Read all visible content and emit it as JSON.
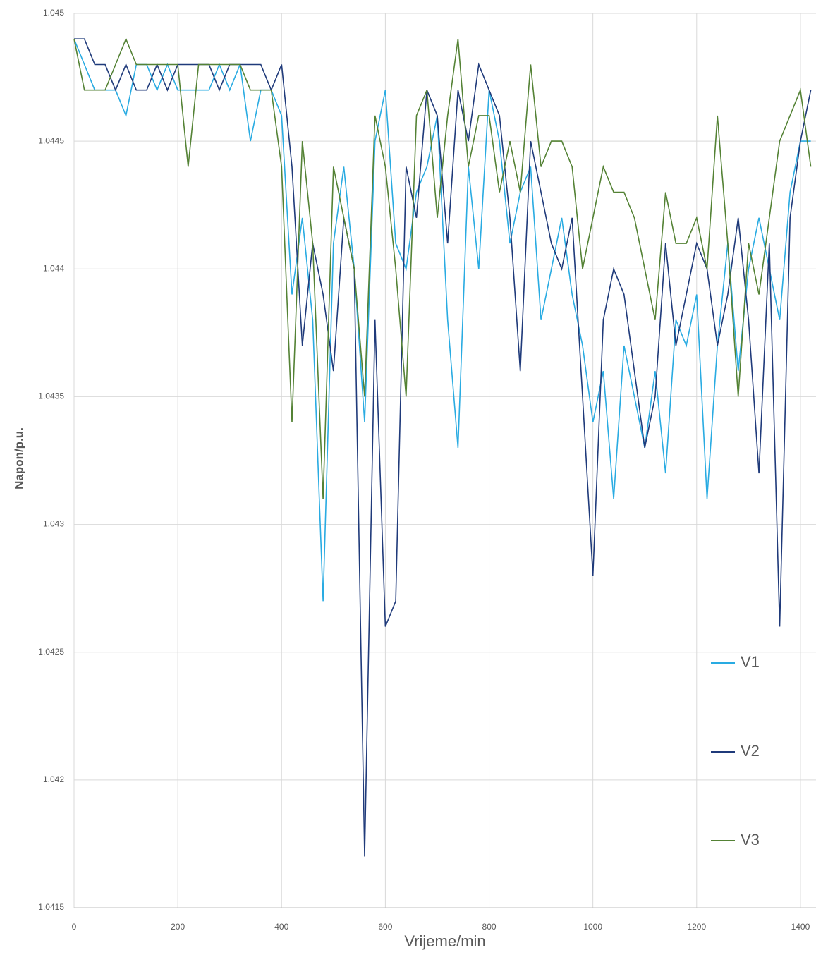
{
  "chart_data": {
    "type": "line",
    "x_label": "Vrijeme/min",
    "y_label": "Napon/p.u.",
    "x": [
      0,
      20,
      40,
      60,
      80,
      100,
      120,
      140,
      160,
      180,
      200,
      220,
      240,
      260,
      280,
      300,
      320,
      340,
      360,
      380,
      400,
      420,
      440,
      460,
      480,
      500,
      520,
      540,
      560,
      580,
      600,
      620,
      640,
      660,
      680,
      700,
      720,
      740,
      760,
      780,
      800,
      820,
      840,
      860,
      880,
      900,
      920,
      940,
      960,
      980,
      1000,
      1020,
      1040,
      1060,
      1080,
      1100,
      1120,
      1140,
      1160,
      1180,
      1200,
      1220,
      1240,
      1260,
      1280,
      1300,
      1320,
      1340,
      1360,
      1380,
      1400,
      1420
    ],
    "series": [
      {
        "name": "V1",
        "color": "#29abe2",
        "values": [
          1.0449,
          1.0448,
          1.0447,
          1.0447,
          1.0447,
          1.0446,
          1.0448,
          1.0448,
          1.0447,
          1.0448,
          1.0447,
          1.0447,
          1.0447,
          1.0447,
          1.0448,
          1.0447,
          1.0448,
          1.0445,
          1.0447,
          1.0447,
          1.0446,
          1.0439,
          1.0442,
          1.0438,
          1.0427,
          1.0441,
          1.0444,
          1.044,
          1.0434,
          1.0445,
          1.0447,
          1.0441,
          1.044,
          1.0443,
          1.0444,
          1.0446,
          1.0438,
          1.0433,
          1.0444,
          1.044,
          1.0447,
          1.0445,
          1.0441,
          1.0443,
          1.0444,
          1.0438,
          1.044,
          1.0442,
          1.0439,
          1.0437,
          1.0434,
          1.0436,
          1.0431,
          1.0437,
          1.0435,
          1.0433,
          1.0436,
          1.0432,
          1.0438,
          1.0437,
          1.0439,
          1.0431,
          1.0437,
          1.0441,
          1.0436,
          1.044,
          1.0442,
          1.044,
          1.0438,
          1.0443,
          1.0445,
          1.0445
        ]
      },
      {
        "name": "V2",
        "color": "#1f3a7a",
        "values": [
          1.0449,
          1.0449,
          1.0448,
          1.0448,
          1.0447,
          1.0448,
          1.0447,
          1.0447,
          1.0448,
          1.0447,
          1.0448,
          1.0448,
          1.0448,
          1.0448,
          1.0447,
          1.0448,
          1.0448,
          1.0448,
          1.0448,
          1.0447,
          1.0448,
          1.0444,
          1.0437,
          1.0441,
          1.0439,
          1.0436,
          1.0442,
          1.044,
          1.0417,
          1.0438,
          1.0426,
          1.0427,
          1.0444,
          1.0442,
          1.0447,
          1.0446,
          1.0441,
          1.0447,
          1.0445,
          1.0448,
          1.0447,
          1.0446,
          1.0442,
          1.0436,
          1.0445,
          1.0443,
          1.0441,
          1.044,
          1.0442,
          1.0435,
          1.0428,
          1.0438,
          1.044,
          1.0439,
          1.0436,
          1.0433,
          1.0435,
          1.0441,
          1.0437,
          1.0439,
          1.0441,
          1.044,
          1.0437,
          1.0439,
          1.0442,
          1.0438,
          1.0432,
          1.0441,
          1.0426,
          1.0442,
          1.0445,
          1.0447
        ]
      },
      {
        "name": "V3",
        "color": "#548235",
        "values": [
          1.0449,
          1.0447,
          1.0447,
          1.0447,
          1.0448,
          1.0449,
          1.0448,
          1.0448,
          1.0448,
          1.0448,
          1.0448,
          1.0444,
          1.0448,
          1.0448,
          1.0448,
          1.0448,
          1.0448,
          1.0447,
          1.0447,
          1.0447,
          1.0444,
          1.0434,
          1.0445,
          1.0441,
          1.0431,
          1.0444,
          1.0442,
          1.044,
          1.0435,
          1.0446,
          1.0444,
          1.044,
          1.0435,
          1.0446,
          1.0447,
          1.0442,
          1.0446,
          1.0449,
          1.0444,
          1.0446,
          1.0446,
          1.0443,
          1.0445,
          1.0443,
          1.0448,
          1.0444,
          1.0445,
          1.0445,
          1.0444,
          1.044,
          1.0442,
          1.0444,
          1.0443,
          1.0443,
          1.0442,
          1.044,
          1.0438,
          1.0443,
          1.0441,
          1.0441,
          1.0442,
          1.044,
          1.0446,
          1.0441,
          1.0435,
          1.0441,
          1.0439,
          1.0442,
          1.0445,
          1.0446,
          1.0447,
          1.0444
        ]
      }
    ],
    "xlim": [
      0,
      1430
    ],
    "xticks": [
      0,
      200,
      400,
      600,
      800,
      1000,
      1200,
      1400
    ],
    "ylim": [
      1.0415,
      1.045
    ],
    "yticks": [
      1.0415,
      1.042,
      1.0425,
      1.043,
      1.0435,
      1.044,
      1.0445,
      1.045
    ],
    "grid": true,
    "legend": "lower right"
  }
}
